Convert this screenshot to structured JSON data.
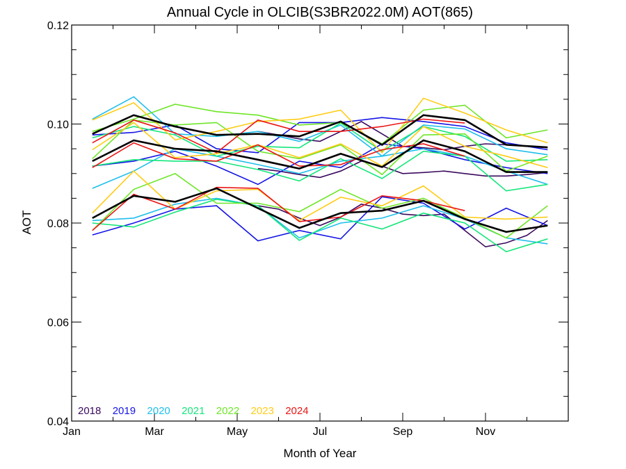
{
  "chart_data": {
    "type": "line",
    "title": "Annual Cycle in OLCIB(S3BR2022.0M) AOT(865)",
    "xlabel": "Month of Year",
    "ylabel": "AOT",
    "xlim": [
      0,
      12
    ],
    "ylim": [
      0.04,
      0.12
    ],
    "x_ticks": [
      {
        "value": 0,
        "label": "Jan"
      },
      {
        "value": 2,
        "label": "Mar"
      },
      {
        "value": 4,
        "label": "May"
      },
      {
        "value": 6,
        "label": "Jul"
      },
      {
        "value": 8,
        "label": "Sep"
      },
      {
        "value": 10,
        "label": "Nov"
      }
    ],
    "y_ticks": [
      {
        "value": 0.04,
        "label": "0.04"
      },
      {
        "value": 0.06,
        "label": "0.06"
      },
      {
        "value": 0.08,
        "label": "0.08"
      },
      {
        "value": 0.1,
        "label": "0.10"
      },
      {
        "value": 0.12,
        "label": "0.12"
      }
    ],
    "legend_position": "bottom-left",
    "legend": [
      {
        "label": "2018",
        "color": "#3a0a5e"
      },
      {
        "label": "2019",
        "color": "#1414e6"
      },
      {
        "label": "2020",
        "color": "#1ebeeb"
      },
      {
        "label": "2021",
        "color": "#14e67a"
      },
      {
        "label": "2022",
        "color": "#6ee628"
      },
      {
        "label": "2023",
        "color": "#ffcc14"
      },
      {
        "label": "2024",
        "color": "#eb1414"
      }
    ],
    "series": [
      {
        "year": "2018",
        "color": "#3a0a5e",
        "x": [
          4.5,
          5,
          5.5,
          6,
          6.5,
          7,
          7.5,
          8,
          8.5,
          9,
          9.5,
          10,
          10.5,
          11,
          11.5
        ],
        "y": [
          0.0835,
          0.0828,
          0.081,
          0.0795,
          0.0812,
          0.0838,
          0.083,
          0.0818,
          0.0815,
          0.0818,
          0.0785,
          0.0752,
          0.076,
          0.0775,
          0.0805
        ]
      },
      {
        "year": "2018",
        "color": "#3a0a5e",
        "x": [
          4.5,
          5,
          5.5,
          6,
          6.5,
          7,
          7.5,
          8,
          8.5,
          9,
          9.5,
          10,
          10.5,
          11,
          11.5
        ],
        "y": [
          0.091,
          0.0905,
          0.0898,
          0.0892,
          0.0905,
          0.0925,
          0.0915,
          0.09,
          0.0902,
          0.0905,
          0.09,
          0.0895,
          0.0895,
          0.0898,
          0.0902
        ]
      },
      {
        "year": "2018",
        "color": "#3a0a5e",
        "x": [
          4.5,
          5,
          5.5,
          6,
          6.5,
          7,
          7.5,
          8,
          8.5,
          9,
          9.5,
          10,
          10.5,
          11,
          11.5
        ],
        "y": [
          0.0985,
          0.0978,
          0.097,
          0.0965,
          0.0985,
          0.1005,
          0.098,
          0.0955,
          0.0952,
          0.0948,
          0.0955,
          0.096,
          0.0958,
          0.0955,
          0.0952
        ]
      },
      {
        "year": "2019",
        "color": "#1414e6",
        "x": [
          0.5,
          1.5,
          2.5,
          3.5,
          4.5,
          5.5,
          6.5,
          7.5,
          8.5,
          9.5,
          10.5,
          11.5
        ],
        "y": [
          0.0776,
          0.08,
          0.0828,
          0.0835,
          0.0764,
          0.0785,
          0.0768,
          0.0853,
          0.084,
          0.0788,
          0.083,
          0.0795
        ]
      },
      {
        "year": "2019",
        "color": "#1414e6",
        "x": [
          0.5,
          1.5,
          2.5,
          3.5,
          4.5,
          5.5,
          6.5,
          7.5,
          8.5,
          9.5,
          10.5,
          11.5
        ],
        "y": [
          0.0915,
          0.0925,
          0.0945,
          0.0915,
          0.0878,
          0.0925,
          0.0912,
          0.096,
          0.095,
          0.0928,
          0.0912,
          0.09
        ]
      },
      {
        "year": "2019",
        "color": "#1414e6",
        "x": [
          0.5,
          1.5,
          2.5,
          3.5,
          4.5,
          5.5,
          6.5,
          7.5,
          8.5,
          9.5,
          10.5,
          11.5
        ],
        "y": [
          0.0978,
          0.0983,
          0.0998,
          0.095,
          0.0942,
          0.1003,
          0.1003,
          0.1013,
          0.1005,
          0.0995,
          0.0962,
          0.0948
        ]
      },
      {
        "year": "2020",
        "color": "#1ebeeb",
        "x": [
          0.5,
          1.5,
          2.5,
          3.5,
          4.5,
          5.5,
          6.5,
          7.5,
          8.5,
          9.5,
          10.5,
          11.5
        ],
        "y": [
          0.0805,
          0.081,
          0.0838,
          0.085,
          0.0835,
          0.077,
          0.08,
          0.081,
          0.0835,
          0.0808,
          0.077,
          0.0758
        ]
      },
      {
        "year": "2020",
        "color": "#1ebeeb",
        "x": [
          0.5,
          1.5,
          2.5,
          3.5,
          4.5,
          5.5,
          6.5,
          7.5,
          8.5,
          9.5,
          10.5,
          11.5
        ],
        "y": [
          0.087,
          0.0905,
          0.095,
          0.0935,
          0.0918,
          0.09,
          0.0925,
          0.0935,
          0.095,
          0.0935,
          0.0905,
          0.0878
        ]
      },
      {
        "year": "2020",
        "color": "#1ebeeb",
        "x": [
          0.5,
          1.5,
          2.5,
          3.5,
          4.5,
          5.5,
          6.5,
          7.5,
          8.5,
          9.5,
          10.5,
          11.5
        ],
        "y": [
          0.101,
          0.1055,
          0.098,
          0.0975,
          0.0985,
          0.0965,
          0.0998,
          0.0935,
          0.0998,
          0.099,
          0.095,
          0.0938
        ]
      },
      {
        "year": "2021",
        "color": "#14e67a",
        "x": [
          0.5,
          1.5,
          2.5,
          3.5,
          4.5,
          5.5,
          6.5,
          7.5,
          8.5,
          9.5,
          10.5,
          11.5
        ],
        "y": [
          0.08,
          0.0792,
          0.0822,
          0.0848,
          0.0835,
          0.0765,
          0.081,
          0.0788,
          0.082,
          0.08,
          0.0742,
          0.0768
        ]
      },
      {
        "year": "2021",
        "color": "#14e67a",
        "x": [
          0.5,
          1.5,
          2.5,
          3.5,
          4.5,
          5.5,
          6.5,
          7.5,
          8.5,
          9.5,
          10.5,
          11.5
        ],
        "y": [
          0.0915,
          0.0928,
          0.0925,
          0.0925,
          0.0908,
          0.0885,
          0.093,
          0.089,
          0.0945,
          0.0935,
          0.0865,
          0.0878
        ]
      },
      {
        "year": "2021",
        "color": "#14e67a",
        "x": [
          0.5,
          1.5,
          2.5,
          3.5,
          4.5,
          5.5,
          6.5,
          7.5,
          8.5,
          9.5,
          10.5,
          11.5
        ],
        "y": [
          0.0972,
          0.0995,
          0.0978,
          0.0935,
          0.0955,
          0.0952,
          0.1002,
          0.0945,
          0.0995,
          0.0975,
          0.0925,
          0.0928
        ]
      },
      {
        "year": "2022",
        "color": "#6ee628",
        "x": [
          0.5,
          1.5,
          2.5,
          3.5,
          4.5,
          5.5,
          6.5,
          7.5,
          8.5,
          9.5,
          10.5,
          11.5
        ],
        "y": [
          0.0785,
          0.0868,
          0.09,
          0.084,
          0.084,
          0.0823,
          0.0868,
          0.083,
          0.085,
          0.081,
          0.077,
          0.0835
        ]
      },
      {
        "year": "2022",
        "color": "#6ee628",
        "x": [
          0.5,
          1.5,
          2.5,
          3.5,
          4.5,
          5.5,
          6.5,
          7.5,
          8.5,
          9.5,
          10.5,
          11.5
        ],
        "y": [
          0.093,
          0.1008,
          0.0998,
          0.1003,
          0.0945,
          0.093,
          0.0958,
          0.0898,
          0.0978,
          0.098,
          0.0905,
          0.0935
        ]
      },
      {
        "year": "2022",
        "color": "#6ee628",
        "x": [
          0.5,
          1.5,
          2.5,
          3.5,
          4.5,
          5.5,
          6.5,
          7.5,
          8.5,
          9.5,
          10.5,
          11.5
        ],
        "y": [
          0.0985,
          0.101,
          0.104,
          0.1025,
          0.1018,
          0.0998,
          0.1003,
          0.096,
          0.1028,
          0.1038,
          0.0972,
          0.0988
        ]
      },
      {
        "year": "2023",
        "color": "#ffcc14",
        "x": [
          0.5,
          1.5,
          2.5,
          3.5,
          4.5,
          5.5,
          6.5,
          7.5,
          8.5,
          9.5,
          10.5,
          11.5
        ],
        "y": [
          0.082,
          0.0905,
          0.0828,
          0.0865,
          0.0868,
          0.0805,
          0.0852,
          0.0835,
          0.0875,
          0.0812,
          0.0808,
          0.0812
        ]
      },
      {
        "year": "2023",
        "color": "#ffcc14",
        "x": [
          0.5,
          1.5,
          2.5,
          3.5,
          4.5,
          5.5,
          6.5,
          7.5,
          8.5,
          9.5,
          10.5,
          11.5
        ],
        "y": [
          0.0948,
          0.1003,
          0.0932,
          0.094,
          0.0958,
          0.0932,
          0.096,
          0.0915,
          0.0995,
          0.0955,
          0.0935,
          0.0912
        ]
      },
      {
        "year": "2023",
        "color": "#ffcc14",
        "x": [
          0.5,
          1.5,
          2.5,
          3.5,
          4.5,
          5.5,
          6.5,
          7.5,
          8.5,
          9.5,
          10.5,
          11.5
        ],
        "y": [
          0.1008,
          0.1043,
          0.0968,
          0.0985,
          0.1005,
          0.101,
          0.1028,
          0.0942,
          0.1052,
          0.1022,
          0.0988,
          0.0962
        ]
      },
      {
        "year": "2024",
        "color": "#eb1414",
        "x": [
          0.5,
          1.5,
          2.5,
          3.5,
          4.5,
          5.5,
          6.5,
          7.5,
          8.5,
          9.5
        ],
        "y": [
          0.0785,
          0.0858,
          0.0828,
          0.0872,
          0.087,
          0.0803,
          0.0812,
          0.0855,
          0.0845,
          0.0825
        ]
      },
      {
        "year": "2024",
        "color": "#eb1414",
        "x": [
          0.5,
          1.5,
          2.5,
          3.5,
          4.5,
          5.5,
          6.5,
          7.5,
          8.5,
          9.5
        ],
        "y": [
          0.0912,
          0.0962,
          0.093,
          0.0925,
          0.0958,
          0.0915,
          0.0918,
          0.0948,
          0.096,
          0.0935
        ]
      },
      {
        "year": "2024",
        "color": "#eb1414",
        "x": [
          0.5,
          1.5,
          2.5,
          3.5,
          4.5,
          5.5,
          6.5,
          7.5,
          8.5,
          9.5
        ],
        "y": [
          0.0962,
          0.1008,
          0.0982,
          0.0942,
          0.1008,
          0.0985,
          0.0985,
          0.0995,
          0.101,
          0.1002
        ]
      },
      {
        "year": "",
        "color": "#000000",
        "x": [
          0.5,
          1.5,
          2.5,
          3.5,
          4.5,
          5.5,
          6.5,
          7.5,
          8.5,
          9.5,
          10.5,
          11.5
        ],
        "y": [
          0.081,
          0.0855,
          0.0843,
          0.087,
          0.083,
          0.079,
          0.082,
          0.0825,
          0.0845,
          0.0808,
          0.0782,
          0.0795
        ]
      },
      {
        "year": "",
        "color": "#000000",
        "x": [
          0.5,
          1.5,
          2.5,
          3.5,
          4.5,
          5.5,
          6.5,
          7.5,
          8.5,
          9.5,
          10.5,
          11.5
        ],
        "y": [
          0.0925,
          0.0967,
          0.095,
          0.0945,
          0.0928,
          0.091,
          0.094,
          0.0913,
          0.0967,
          0.0945,
          0.0903,
          0.0903
        ]
      },
      {
        "year": "",
        "color": "#000000",
        "x": [
          0.5,
          1.5,
          2.5,
          3.5,
          4.5,
          5.5,
          6.5,
          7.5,
          8.5,
          9.5,
          10.5,
          11.5
        ],
        "y": [
          0.098,
          0.1018,
          0.0995,
          0.0978,
          0.098,
          0.0975,
          0.1005,
          0.0958,
          0.1018,
          0.1008,
          0.0958,
          0.0953
        ]
      }
    ]
  }
}
